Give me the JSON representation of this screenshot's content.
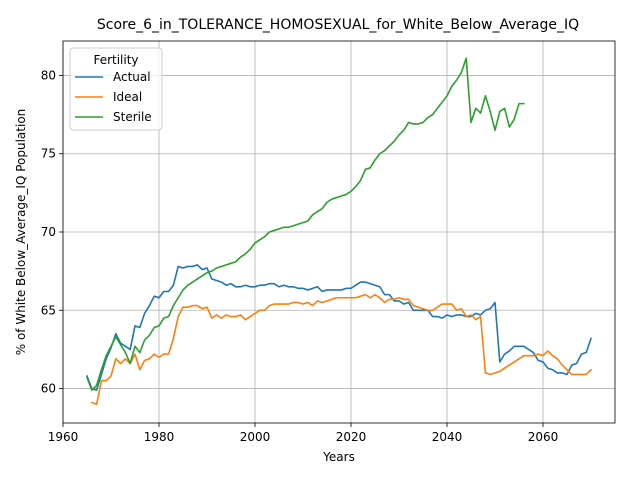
{
  "chart_data": {
    "type": "line",
    "title": "Score_6_in_TOLERANCE_HOMOSEXUAL_for_White_Below_Average_IQ",
    "xlabel": "Years",
    "ylabel": "% of White Below_Average_IQ Population",
    "xlim": [
      1960,
      2075
    ],
    "ylim": [
      57.8,
      82.2
    ],
    "xticks": [
      1960,
      1980,
      2000,
      2020,
      2040,
      2060
    ],
    "yticks": [
      60,
      65,
      70,
      75,
      80
    ],
    "grid": true,
    "legend": {
      "title": "Fertility",
      "placement": "top-left"
    },
    "colors": {
      "Actual": "#1f77b4",
      "Ideal": "#ff7f0e",
      "Sterile": "#2ca02c"
    },
    "series": [
      {
        "name": "Actual",
        "x": [
          1965,
          1966,
          1967,
          1968,
          1969,
          1970,
          1971,
          1972,
          1973,
          1974,
          1975,
          1976,
          1977,
          1978,
          1979,
          1980,
          1981,
          1982,
          1983,
          1984,
          1985,
          1986,
          1987,
          1988,
          1989,
          1990,
          1991,
          1992,
          1993,
          1994,
          1995,
          1996,
          1997,
          1998,
          1999,
          2000,
          2001,
          2002,
          2003,
          2004,
          2005,
          2006,
          2007,
          2008,
          2009,
          2010,
          2011,
          2012,
          2013,
          2014,
          2015,
          2016,
          2017,
          2018,
          2019,
          2020,
          2021,
          2022,
          2023,
          2024,
          2025,
          2026,
          2027,
          2028,
          2029,
          2030,
          2031,
          2032,
          2033,
          2034,
          2035,
          2036,
          2037,
          2038,
          2039,
          2040,
          2041,
          2042,
          2043,
          2044,
          2045,
          2046,
          2047,
          2048,
          2049,
          2050,
          2051,
          2052,
          2053,
          2054,
          2055,
          2056,
          2057,
          2058,
          2059,
          2060,
          2061,
          2062,
          2063,
          2064,
          2065,
          2066,
          2067,
          2068,
          2069,
          2070
        ],
        "values": [
          60.8,
          60.0,
          59.9,
          60.9,
          61.9,
          62.6,
          63.5,
          62.9,
          62.7,
          62.5,
          64.0,
          63.9,
          64.8,
          65.3,
          65.9,
          65.8,
          66.2,
          66.2,
          66.6,
          67.8,
          67.7,
          67.8,
          67.8,
          67.9,
          67.6,
          67.7,
          67.0,
          66.9,
          66.8,
          66.6,
          66.7,
          66.5,
          66.5,
          66.6,
          66.5,
          66.5,
          66.6,
          66.6,
          66.7,
          66.7,
          66.5,
          66.6,
          66.5,
          66.5,
          66.4,
          66.4,
          66.3,
          66.4,
          66.5,
          66.2,
          66.3,
          66.3,
          66.3,
          66.3,
          66.4,
          66.4,
          66.6,
          66.8,
          66.8,
          66.7,
          66.6,
          66.5,
          66.0,
          66.0,
          65.6,
          65.6,
          65.4,
          65.5,
          65.0,
          65.0,
          65.0,
          65.0,
          64.6,
          64.6,
          64.5,
          64.7,
          64.6,
          64.7,
          64.7,
          64.6,
          64.6,
          64.8,
          64.7,
          65.0,
          65.1,
          65.5,
          61.7,
          62.2,
          62.4,
          62.7,
          62.7,
          62.7,
          62.5,
          62.3,
          61.8,
          61.7,
          61.3,
          61.2,
          61.0,
          61.0,
          60.9,
          61.5,
          61.6,
          62.2,
          62.3,
          63.2
        ]
      },
      {
        "name": "Ideal",
        "x": [
          1966,
          1967,
          1968,
          1969,
          1970,
          1971,
          1972,
          1973,
          1974,
          1975,
          1976,
          1977,
          1978,
          1979,
          1980,
          1981,
          1982,
          1983,
          1984,
          1985,
          1986,
          1987,
          1988,
          1989,
          1990,
          1991,
          1992,
          1993,
          1994,
          1995,
          1996,
          1997,
          1998,
          1999,
          2000,
          2001,
          2002,
          2003,
          2004,
          2005,
          2006,
          2007,
          2008,
          2009,
          2010,
          2011,
          2012,
          2013,
          2014,
          2015,
          2016,
          2017,
          2018,
          2019,
          2020,
          2021,
          2022,
          2023,
          2024,
          2025,
          2026,
          2027,
          2028,
          2029,
          2030,
          2031,
          2032,
          2033,
          2034,
          2035,
          2036,
          2037,
          2038,
          2039,
          2040,
          2041,
          2042,
          2043,
          2044,
          2045,
          2046,
          2047,
          2048,
          2049,
          2050,
          2051,
          2052,
          2053,
          2054,
          2055,
          2056,
          2057,
          2058,
          2059,
          2060,
          2061,
          2062,
          2063,
          2064,
          2065,
          2066,
          2067,
          2068,
          2069,
          2070
        ],
        "values": [
          59.1,
          59.0,
          60.5,
          60.5,
          60.8,
          61.9,
          61.6,
          61.9,
          61.6,
          62.2,
          61.2,
          61.8,
          61.9,
          62.2,
          62.0,
          62.2,
          62.2,
          63.2,
          64.6,
          65.2,
          65.2,
          65.3,
          65.3,
          65.1,
          65.2,
          64.5,
          64.7,
          64.5,
          64.7,
          64.6,
          64.6,
          64.7,
          64.4,
          64.6,
          64.8,
          65.0,
          65.0,
          65.3,
          65.4,
          65.4,
          65.4,
          65.4,
          65.5,
          65.5,
          65.4,
          65.5,
          65.3,
          65.6,
          65.5,
          65.6,
          65.7,
          65.8,
          65.8,
          65.8,
          65.8,
          65.8,
          65.9,
          66.0,
          65.8,
          66.0,
          65.8,
          65.5,
          65.7,
          65.7,
          65.8,
          65.7,
          65.7,
          65.3,
          65.2,
          65.1,
          65.0,
          65.0,
          65.2,
          65.4,
          65.4,
          65.4,
          65.0,
          65.1,
          64.6,
          64.7,
          64.4,
          64.6,
          61.0,
          60.9,
          61.0,
          61.1,
          61.3,
          61.5,
          61.7,
          61.9,
          62.1,
          62.1,
          62.1,
          62.2,
          62.1,
          62.4,
          62.1,
          61.9,
          61.5,
          61.2,
          60.9,
          60.9,
          60.9,
          60.9,
          61.2
        ]
      },
      {
        "name": "Sterile",
        "x": [
          1965,
          1966,
          1967,
          1968,
          1969,
          1970,
          1971,
          1972,
          1973,
          1974,
          1975,
          1976,
          1977,
          1978,
          1979,
          1980,
          1981,
          1982,
          1983,
          1984,
          1985,
          1986,
          1987,
          1988,
          1989,
          1990,
          1991,
          1992,
          1993,
          1994,
          1995,
          1996,
          1997,
          1998,
          1999,
          2000,
          2001,
          2002,
          2003,
          2004,
          2005,
          2006,
          2007,
          2008,
          2009,
          2010,
          2011,
          2012,
          2013,
          2014,
          2015,
          2016,
          2017,
          2018,
          2019,
          2020,
          2021,
          2022,
          2023,
          2024,
          2025,
          2026,
          2027,
          2028,
          2029,
          2030,
          2031,
          2032,
          2033,
          2034,
          2035,
          2036,
          2037,
          2038,
          2039,
          2040,
          2041,
          2042,
          2043,
          2044,
          2045,
          2046,
          2047,
          2048,
          2049,
          2050,
          2051,
          2052,
          2053,
          2054,
          2055,
          2056
        ],
        "values": [
          60.7,
          59.9,
          60.2,
          61.2,
          62.1,
          62.7,
          63.3,
          62.8,
          62.3,
          61.6,
          62.7,
          62.3,
          63.1,
          63.4,
          63.9,
          64.0,
          64.5,
          64.6,
          65.3,
          65.8,
          66.3,
          66.6,
          66.8,
          67.0,
          67.2,
          67.4,
          67.5,
          67.7,
          67.8,
          67.9,
          68.0,
          68.1,
          68.4,
          68.6,
          68.9,
          69.3,
          69.5,
          69.7,
          70.0,
          70.1,
          70.2,
          70.3,
          70.3,
          70.4,
          70.5,
          70.6,
          70.7,
          71.1,
          71.3,
          71.5,
          71.9,
          72.1,
          72.2,
          72.3,
          72.4,
          72.6,
          72.9,
          73.3,
          74.0,
          74.1,
          74.6,
          75.0,
          75.2,
          75.5,
          75.8,
          76.2,
          76.5,
          77.0,
          76.9,
          76.9,
          77.0,
          77.3,
          77.5,
          77.9,
          78.3,
          78.7,
          79.3,
          79.7,
          80.2,
          81.1,
          77.0,
          77.9,
          77.6,
          78.7,
          77.7,
          76.5,
          77.7,
          77.9,
          76.7,
          77.2,
          78.2,
          78.2
        ]
      }
    ]
  }
}
